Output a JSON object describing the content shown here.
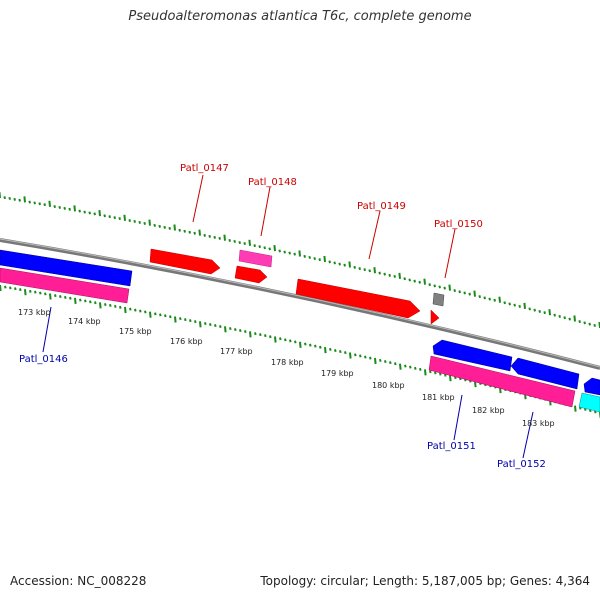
{
  "title": "Pseudoalteromonas atlantica T6c, complete genome",
  "footer": {
    "accession": "Accession: NC_008228",
    "summary": "Topology: circular; Length: 5,187,005 bp; Genes: 4,364"
  },
  "colors": {
    "backbone": "#808080",
    "forward_red": "#ff0000",
    "forward_pink": "#ff3cb4",
    "reverse_blue": "#0000ff",
    "reverse_pink": "#ff1e96",
    "cyan": "#00ffff",
    "gray_gene": "#808080",
    "tick_green": "#1a8a1a",
    "forward_label": "#cc0000",
    "reverse_label": "#0000aa"
  },
  "scale": {
    "kbp_labels": [
      "173 kbp",
      "174 kbp",
      "175 kbp",
      "176 kbp",
      "177 kbp",
      "178 kbp",
      "179 kbp",
      "180 kbp",
      "181 kbp",
      "182 kbp",
      "183 kbp"
    ]
  },
  "genes_forward_labels": [
    "Patl_0147",
    "Patl_0148",
    "Patl_0149",
    "Patl_0150"
  ],
  "genes_reverse_labels": [
    "Patl_0146",
    "Patl_0151",
    "Patl_0152"
  ]
}
